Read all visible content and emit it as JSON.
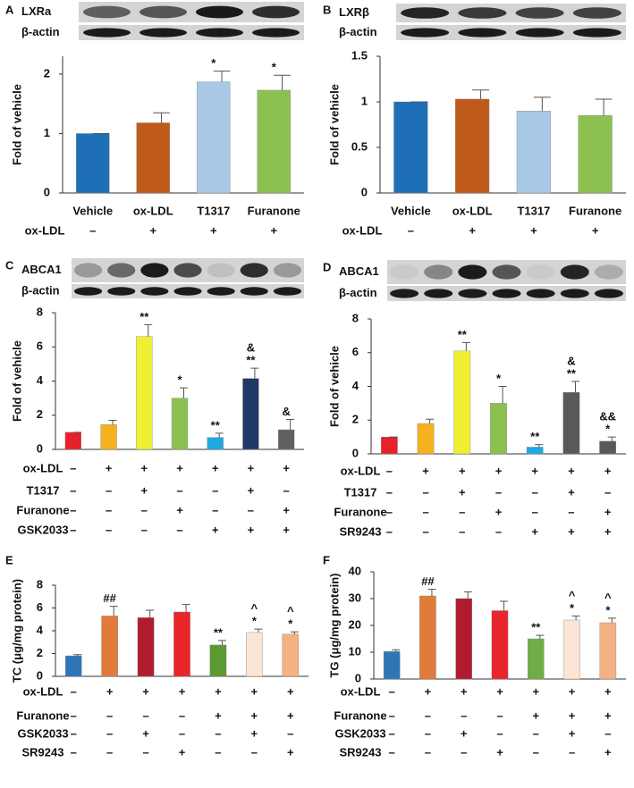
{
  "chart_data": [
    {
      "type": "bar",
      "panel": "A",
      "blot_labels": [
        "LXRa",
        "β-actin"
      ],
      "ylabel": "Fold of vehicle",
      "ylim": [
        0,
        2.3
      ],
      "yticks": [
        0,
        1,
        2
      ],
      "categories": [
        "Vehicle",
        "ox-LDL",
        "T1317",
        "Furanone"
      ],
      "values": [
        1,
        1.18,
        1.87,
        1.73
      ],
      "errors": [
        0,
        0.17,
        0.18,
        0.25
      ],
      "colors": [
        "#1f6fb8",
        "#c05a1a",
        "#a8c8e6",
        "#8cc152"
      ],
      "annotations": [
        [],
        [],
        [
          "*"
        ],
        [
          "*"
        ]
      ],
      "condition_rows": [
        {
          "label": "ox-LDL",
          "signs": [
            "–",
            "+",
            "+",
            "+"
          ]
        }
      ]
    },
    {
      "type": "bar",
      "panel": "B",
      "blot_labels": [
        "LXRβ",
        "β-actin"
      ],
      "ylabel": "Fold of vehicle",
      "ylim": [
        0,
        1.5
      ],
      "yticks": [
        0,
        0.5,
        1,
        1.5
      ],
      "categories": [
        "Vehicle",
        "ox-LDL",
        "T1317",
        "Furanone"
      ],
      "values": [
        1,
        1.03,
        0.9,
        0.85
      ],
      "errors": [
        0,
        0.1,
        0.15,
        0.18
      ],
      "colors": [
        "#1f6fb8",
        "#c05a1a",
        "#a8c8e6",
        "#8cc152"
      ],
      "annotations": [
        [],
        [],
        [],
        []
      ],
      "condition_rows": [
        {
          "label": "ox-LDL",
          "signs": [
            "–",
            "+",
            "+",
            "+"
          ]
        }
      ]
    },
    {
      "type": "bar",
      "panel": "C",
      "blot_labels": [
        "ABCA1",
        "β-actin"
      ],
      "ylabel": "Fold of vehicle",
      "ylim": [
        0,
        8
      ],
      "yticks": [
        0,
        2,
        4,
        6,
        8
      ],
      "values": [
        1,
        1.45,
        6.6,
        3.0,
        0.7,
        4.15,
        1.15
      ],
      "errors": [
        0,
        0.25,
        0.7,
        0.6,
        0.25,
        0.6,
        0.6
      ],
      "colors": [
        "#e8202a",
        "#f5b120",
        "#f0f032",
        "#8cc152",
        "#1ea9e0",
        "#1f3864",
        "#606060"
      ],
      "annotations": [
        [],
        [],
        [
          "**"
        ],
        [
          "*"
        ],
        [
          "**"
        ],
        [
          "&",
          "**"
        ],
        [
          "&"
        ]
      ],
      "condition_rows": [
        {
          "label": "ox-LDL",
          "signs": [
            "–",
            "+",
            "+",
            "+",
            "+",
            "+",
            "+"
          ]
        },
        {
          "label": "T1317",
          "signs": [
            "–",
            "–",
            "+",
            "–",
            "–",
            "+",
            "–"
          ]
        },
        {
          "label": "Furanone",
          "signs": [
            "–",
            "–",
            "–",
            "+",
            "–",
            "–",
            "+"
          ]
        },
        {
          "label": "GSK2033",
          "signs": [
            "–",
            "–",
            "–",
            "–",
            "+",
            "+",
            "+"
          ]
        }
      ]
    },
    {
      "type": "bar",
      "panel": "D",
      "blot_labels": [
        "ABCA1",
        "β-actin"
      ],
      "ylabel": "Fold of vehicle",
      "ylim": [
        0,
        8
      ],
      "yticks": [
        0,
        2,
        4,
        6,
        8
      ],
      "values": [
        1,
        1.8,
        6.1,
        3.0,
        0.4,
        3.65,
        0.75
      ],
      "errors": [
        0,
        0.25,
        0.5,
        1.0,
        0.15,
        0.65,
        0.25
      ],
      "colors": [
        "#e8202a",
        "#f5b120",
        "#f0f032",
        "#8cc152",
        "#1ea9e0",
        "#595959",
        "#595959"
      ],
      "annotations": [
        [],
        [],
        [
          "**"
        ],
        [
          "*"
        ],
        [
          "**"
        ],
        [
          "&",
          "**"
        ],
        [
          "&&",
          "*"
        ]
      ],
      "condition_rows": [
        {
          "label": "ox-LDL",
          "signs": [
            "–",
            "+",
            "+",
            "+",
            "+",
            "+",
            "+"
          ]
        },
        {
          "label": "T1317",
          "signs": [
            "–",
            "–",
            "+",
            "–",
            "–",
            "+",
            "–"
          ]
        },
        {
          "label": "Furanone",
          "signs": [
            "–",
            "–",
            "–",
            "+",
            "–",
            "–",
            "+"
          ]
        },
        {
          "label": "SR9243",
          "signs": [
            "–",
            "–",
            "–",
            "–",
            "+",
            "+",
            "+"
          ]
        }
      ]
    },
    {
      "type": "bar",
      "panel": "E",
      "ylabel": "TC (μg/mg protein)",
      "ylim": [
        0,
        8
      ],
      "yticks": [
        0,
        2,
        4,
        6,
        8
      ],
      "values": [
        1.8,
        5.3,
        5.15,
        5.65,
        2.75,
        3.85,
        3.7
      ],
      "errors": [
        0.1,
        0.85,
        0.65,
        0.65,
        0.4,
        0.3,
        0.2
      ],
      "colors": [
        "#2e75b6",
        "#e07b39",
        "#b01c2e",
        "#e8262b",
        "#5a9a30",
        "#fbe5d6",
        "#f4b183"
      ],
      "annotations": [
        [],
        [
          "##"
        ],
        [],
        [],
        [
          "**"
        ],
        [
          "^",
          "*"
        ],
        [
          "^",
          "*"
        ]
      ],
      "condition_rows": [
        {
          "label": "ox-LDL",
          "signs": [
            "–",
            "+",
            "+",
            "+",
            "+",
            "+",
            "+"
          ]
        },
        {
          "label": "Furanone",
          "signs": [
            "–",
            "–",
            "–",
            "–",
            "+",
            "+",
            "+"
          ]
        },
        {
          "label": "GSK2033",
          "signs": [
            "–",
            "–",
            "+",
            "–",
            "–",
            "+",
            "–"
          ]
        },
        {
          "label": "SR9243",
          "signs": [
            "–",
            "–",
            "–",
            "+",
            "–",
            "–",
            "+"
          ]
        }
      ]
    },
    {
      "type": "bar",
      "panel": "F",
      "ylabel": "TG (μg/mg protein)",
      "ylim": [
        0,
        40
      ],
      "yticks": [
        0,
        10,
        20,
        30,
        40
      ],
      "values": [
        10.3,
        31,
        30,
        25.5,
        15,
        22,
        21
      ],
      "errors": [
        0.6,
        2.5,
        2.5,
        3.5,
        1.3,
        1.5,
        1.7
      ],
      "colors": [
        "#2e75b6",
        "#e07b39",
        "#b01c2e",
        "#e8262b",
        "#70ad47",
        "#fbe5d6",
        "#f4b183"
      ],
      "annotations": [
        [],
        [
          "##"
        ],
        [],
        [],
        [
          "**"
        ],
        [
          "^",
          "*"
        ],
        [
          "^",
          "*"
        ]
      ],
      "condition_rows": [
        {
          "label": "ox-LDL",
          "signs": [
            "–",
            "+",
            "+",
            "+",
            "+",
            "+",
            "+"
          ]
        },
        {
          "label": "Furanone",
          "signs": [
            "–",
            "–",
            "–",
            "–",
            "+",
            "+",
            "+"
          ]
        },
        {
          "label": "GSK2033",
          "signs": [
            "–",
            "–",
            "+",
            "–",
            "–",
            "+",
            "–"
          ]
        },
        {
          "label": "SR9243",
          "signs": [
            "–",
            "–",
            "–",
            "+",
            "–",
            "–",
            "+"
          ]
        }
      ]
    }
  ]
}
